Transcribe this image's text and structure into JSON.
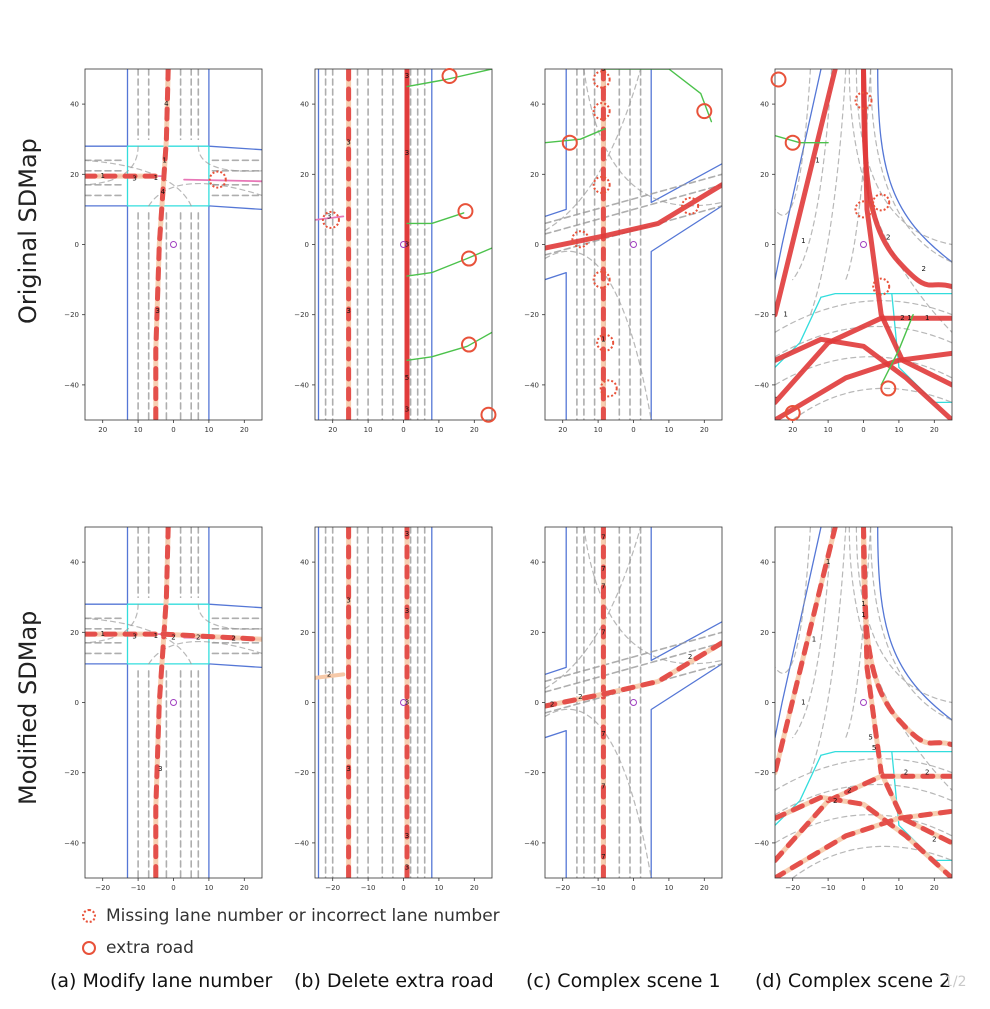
{
  "rows": [
    {
      "label": "Original SDMap"
    },
    {
      "label": "Modified SDMap"
    }
  ],
  "captions": [
    "(a) Modify lane number",
    "(b) Delete extra road",
    "(c) Complex scene 1",
    "(d) Complex scene 2"
  ],
  "legend": {
    "dotted": "Missing lane number or incorrect lane number",
    "solid": "extra road"
  },
  "axes": {
    "x_ticks": [
      "20",
      "10",
      "0",
      "10",
      "20"
    ],
    "x_ticks_neg": [
      "−20",
      "−10",
      "0",
      "10",
      "20"
    ],
    "y_ticks": [
      "40",
      "20",
      "0",
      "−20",
      "−40"
    ]
  },
  "watermark": "1/2",
  "colors": {
    "lane_dash": "#9a9a9a",
    "road_red": "#e03a3a",
    "road_peach": "#f6c9a8",
    "boundary_blue": "#5577d6",
    "junction_cyan": "#33dddd",
    "extra_green": "#4cc24c",
    "marker_red": "#e8523a",
    "ego_purple": "#a040c0"
  },
  "panels": {
    "a_orig": {
      "lane_numbers": [
        "1",
        "3",
        "1",
        "4",
        "1",
        "4",
        "3"
      ]
    },
    "b_orig": {
      "lane_numbers": [
        "3",
        "3",
        "3",
        "3",
        "3",
        "3",
        "5",
        "3"
      ]
    },
    "c_orig": {
      "lane_numbers": [
        "5",
        "1"
      ]
    },
    "d_orig": {
      "lane_numbers": [
        "1",
        "1",
        "1",
        "1",
        "2",
        "2",
        "2",
        "1",
        "1"
      ]
    },
    "a_mod": {
      "lane_numbers": [
        "1",
        "3",
        "1",
        "2",
        "2",
        "2",
        "3"
      ]
    },
    "b_mod": {
      "lane_numbers": [
        "2",
        "3",
        "3",
        "3",
        "3",
        "3",
        "3",
        "3"
      ]
    },
    "c_mod": {
      "lane_numbers": [
        "7",
        "7",
        "7",
        "7",
        "7",
        "7",
        "2",
        "2",
        "2",
        "7"
      ]
    },
    "d_mod": {
      "lane_numbers": [
        "1",
        "1",
        "1",
        "1",
        "1",
        "2",
        "2",
        "2",
        "2",
        "5",
        "5",
        "2"
      ]
    }
  }
}
